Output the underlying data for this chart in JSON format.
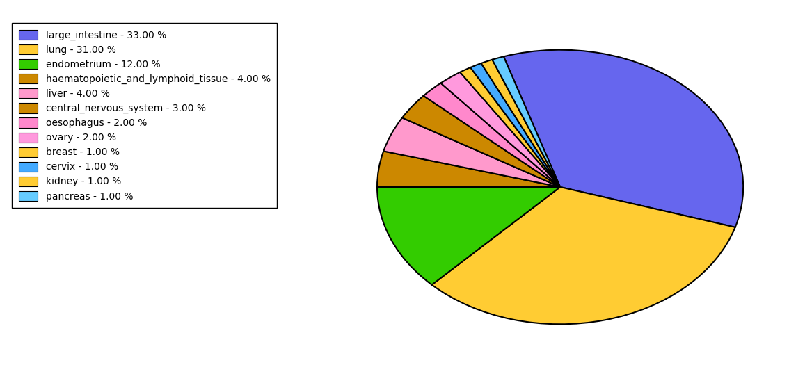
{
  "labels": [
    "large_intestine - 33.00 %",
    "lung - 31.00 %",
    "endometrium - 12.00 %",
    "haematopoietic_and_lymphoid_tissue - 4.00 %",
    "liver - 4.00 %",
    "central_nervous_system - 3.00 %",
    "oesophagus - 2.00 %",
    "ovary - 2.00 %",
    "breast - 1.00 %",
    "cervix - 1.00 %",
    "kidney - 1.00 %",
    "pancreas - 1.00 %"
  ],
  "values": [
    33,
    31,
    12,
    4,
    4,
    3,
    2,
    2,
    1,
    1,
    1,
    1
  ],
  "colors": [
    "#6666ee",
    "#ffcc33",
    "#33cc00",
    "#cc8800",
    "#ff99cc",
    "#cc8800",
    "#ff88cc",
    "#ff99dd",
    "#ffcc33",
    "#44aaff",
    "#ffcc33",
    "#66ccff"
  ],
  "background_color": "#ffffff",
  "figsize": [
    11.34,
    5.38
  ],
  "dpi": 100,
  "startangle": 108,
  "ellipse_ratio": 0.75
}
